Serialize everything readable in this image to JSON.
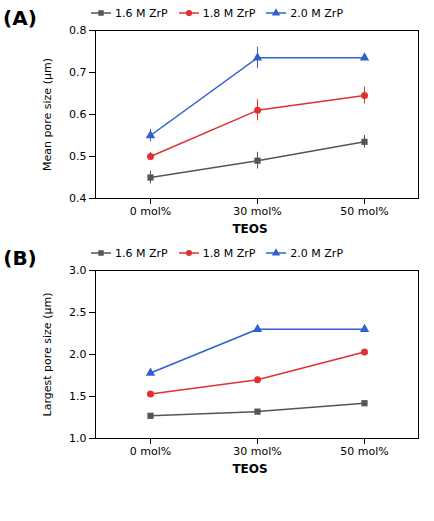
{
  "chart_data": [
    {
      "type": "line",
      "title": "(A)",
      "ylabel": "Mean pore size (μm)",
      "xlabel": "TEOS",
      "categories": [
        "0 mol%",
        "30 mol%",
        "50 mol%"
      ],
      "ylim": [
        0.4,
        0.8
      ],
      "yticks": [
        0.4,
        0.5,
        0.6,
        0.7,
        0.8
      ],
      "grid": false,
      "legend": "upper left",
      "series": [
        {
          "name": "1.6 M ZrP",
          "color": "#555555",
          "marker": "square",
          "values": [
            0.45,
            0.49,
            0.535
          ],
          "yerr": [
            0.015,
            0.02,
            0.015
          ]
        },
        {
          "name": "1.8 M ZrP",
          "color": "#e03030",
          "marker": "circle",
          "values": [
            0.5,
            0.61,
            0.645
          ],
          "yerr": [
            0.01,
            0.025,
            0.02
          ]
        },
        {
          "name": "2.0 M ZrP",
          "color": "#3060d0",
          "marker": "triangle",
          "values": [
            0.55,
            0.735,
            0.735
          ],
          "yerr": [
            0.015,
            0.025,
            0.0
          ]
        }
      ]
    },
    {
      "type": "line",
      "title": "(B)",
      "ylabel": "Largest pore size (μm)",
      "xlabel": "TEOS",
      "categories": [
        "0 mol%",
        "30 mol%",
        "50 mol%"
      ],
      "ylim": [
        1.0,
        3.0
      ],
      "yticks": [
        {
          "value": 1.0,
          "label": "1.0"
        },
        1.5,
        {
          "value": 2.0,
          "label": "2.0"
        },
        2.5,
        {
          "value": 3.0,
          "label": "3.0"
        }
      ],
      "grid": false,
      "legend": "upper left",
      "series": [
        {
          "name": "1.6 M ZrP",
          "color": "#555555",
          "marker": "square",
          "values": [
            1.27,
            1.32,
            1.42
          ],
          "yerr": [
            0.02,
            0.02,
            0.02
          ]
        },
        {
          "name": "1.8 M ZrP",
          "color": "#e03030",
          "marker": "circle",
          "values": [
            1.53,
            1.7,
            2.03
          ],
          "yerr": [
            0.02,
            0.03,
            0.03
          ]
        },
        {
          "name": "2.0 M ZrP",
          "color": "#3060d0",
          "marker": "triangle",
          "values": [
            1.78,
            2.3,
            2.3
          ],
          "yerr": [
            0.025,
            0.025,
            0.0
          ]
        }
      ]
    }
  ]
}
